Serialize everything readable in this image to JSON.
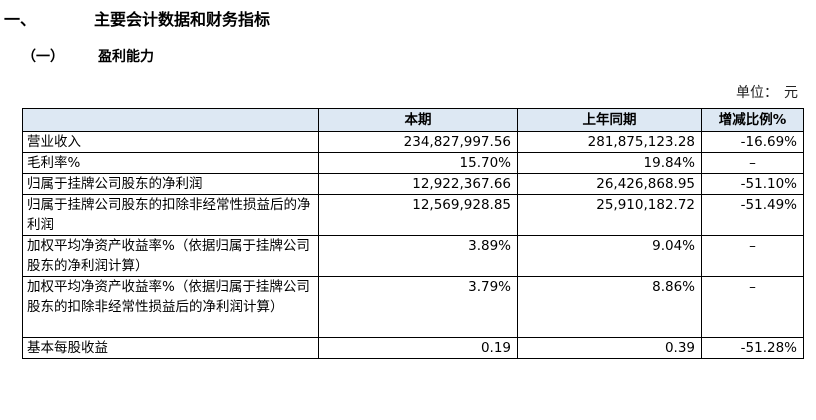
{
  "section": {
    "number": "一、",
    "title": "主要会计数据和财务指标"
  },
  "subsection": {
    "number": "（一）",
    "title": "盈利能力"
  },
  "unit": {
    "label": "单位：",
    "value": "元"
  },
  "table": {
    "headers": [
      "",
      "本期",
      "上年同期",
      "增减比例%"
    ],
    "rows": [
      {
        "label": "营业收入",
        "current": "234,827,997.56",
        "previous": "281,875,123.28",
        "change": "-16.69%"
      },
      {
        "label": "毛利率%",
        "current": "15.70%",
        "previous": "19.84%",
        "change": "–"
      },
      {
        "label": "归属于挂牌公司股东的净利润",
        "current": "12,922,367.66",
        "previous": "26,426,868.95",
        "change": "-51.10%"
      },
      {
        "label": "归属于挂牌公司股东的扣除非经常性损益后的净利润",
        "current": "12,569,928.85",
        "previous": "25,910,182.72",
        "change": "-51.49%"
      },
      {
        "label": "加权平均净资产收益率%（依据归属于挂牌公司股东的净利润计算）",
        "current": "3.89%",
        "previous": "9.04%",
        "change": "–"
      },
      {
        "label": "加权平均净资产收益率%（依据归属于挂牌公司股东的扣除非经常性损益后的净利润计算）",
        "current": "3.79%",
        "previous": "8.86%",
        "change": "–"
      },
      {
        "label": "基本每股收益",
        "current": "0.19",
        "previous": "0.39",
        "change": "-51.28%"
      }
    ]
  }
}
